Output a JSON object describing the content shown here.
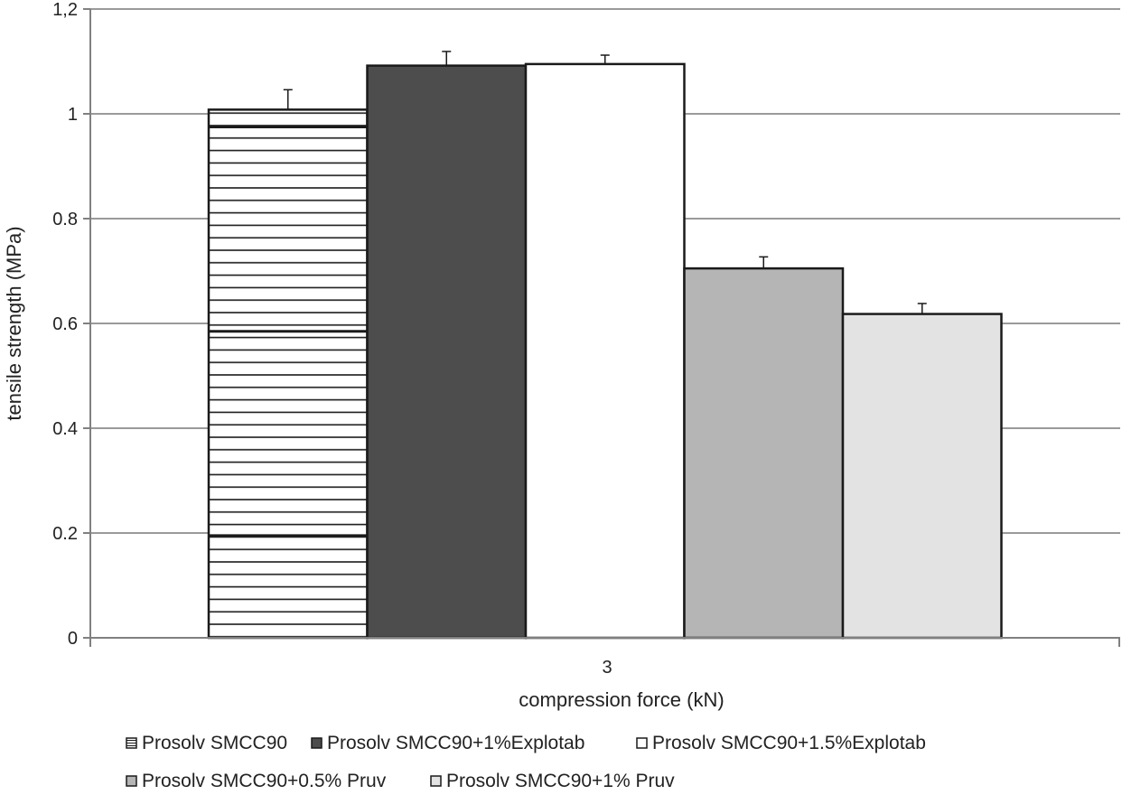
{
  "chart_data": {
    "type": "bar",
    "title": "",
    "xlabel": "compression force  (kN)",
    "ylabel": "tensile strength (MPa)",
    "categories": [
      "3"
    ],
    "ylim": [
      0,
      1.2
    ],
    "yticks": [
      0,
      0.2,
      0.4,
      0.6,
      0.8,
      1,
      1.2
    ],
    "ytick_labels": [
      "0",
      "0.2",
      "0.4",
      "0.6",
      "0.8",
      "1",
      "1,2"
    ],
    "grid": true,
    "legend_position": "bottom",
    "series": [
      {
        "name": "Prosolv SMCC90",
        "values": [
          1.008
        ],
        "error": [
          0.038
        ],
        "fill": "#ffffff",
        "pattern": "horizontal-stripes"
      },
      {
        "name": "Prosolv SMCC90+1%Explotab",
        "values": [
          1.092
        ],
        "error": [
          0.027
        ],
        "fill": "#4d4d4d",
        "pattern": "solid"
      },
      {
        "name": "Prosolv SMCC90+1.5%Explotab",
        "values": [
          1.095
        ],
        "error": [
          0.017
        ],
        "fill": "#ffffff",
        "pattern": "solid"
      },
      {
        "name": "Prosolv SMCC90+0.5% Pruv",
        "values": [
          0.705
        ],
        "error": [
          0.022
        ],
        "fill": "#b5b5b5",
        "pattern": "solid"
      },
      {
        "name": "Prosolv SMCC90+1% Pruv",
        "values": [
          0.618
        ],
        "error": [
          0.02
        ],
        "fill": "#e3e3e3",
        "pattern": "solid"
      }
    ],
    "colors": {
      "axis": "#808080",
      "grid": "#9a9a9a",
      "bar_outline": "#1a1a1a",
      "text": "#222222"
    }
  }
}
